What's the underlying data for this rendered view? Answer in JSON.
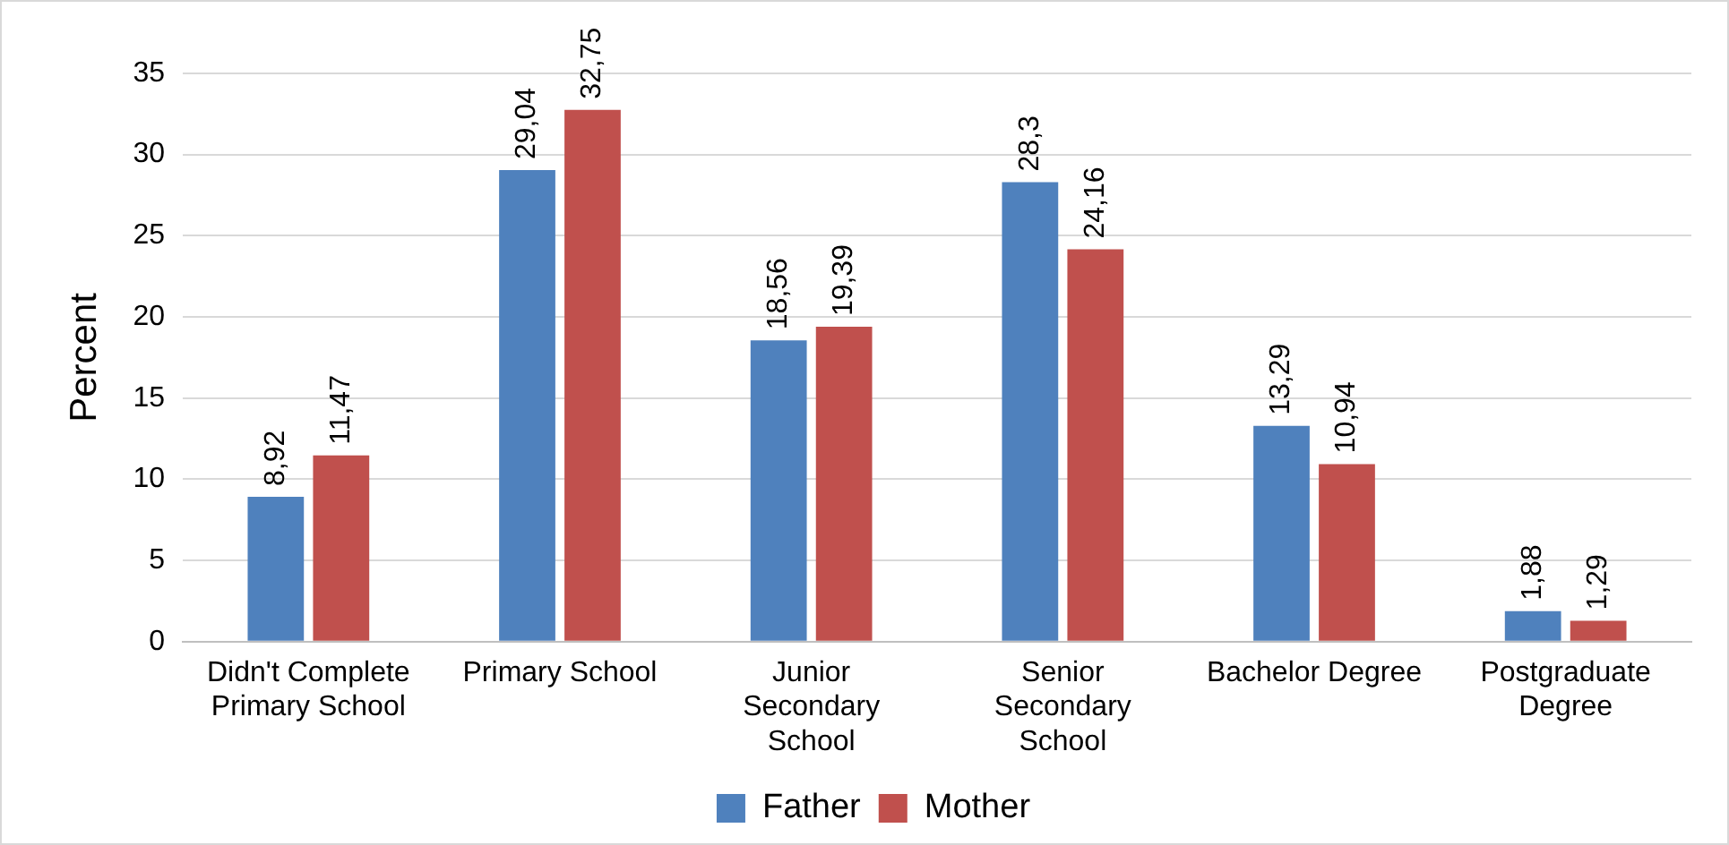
{
  "chart_data": {
    "type": "bar",
    "ylabel": "Percent",
    "categories": [
      "Didn't Complete Primary School",
      "Primary School",
      "Junior Secondary School",
      "Senior Secondary School",
      "Bachelor Degree",
      "Postgraduate Degree"
    ],
    "series": [
      {
        "name": "Father",
        "color": "#4f81bd",
        "values": [
          8.92,
          29.04,
          18.56,
          28.3,
          13.29,
          1.88
        ],
        "value_labels": [
          "8,92",
          "29,04",
          "18,56",
          "28,3",
          "13,29",
          "1,88"
        ]
      },
      {
        "name": "Mother",
        "color": "#c0504d",
        "values": [
          11.47,
          32.75,
          19.39,
          24.16,
          10.94,
          1.29
        ],
        "value_labels": [
          "11,47",
          "32,75",
          "19,39",
          "24,16",
          "10,94",
          "1,29"
        ]
      }
    ],
    "ylim": [
      0,
      35
    ],
    "yticks": [
      0,
      5,
      10,
      15,
      20,
      25,
      30,
      35
    ],
    "grid": "y",
    "legend": "bottom"
  }
}
